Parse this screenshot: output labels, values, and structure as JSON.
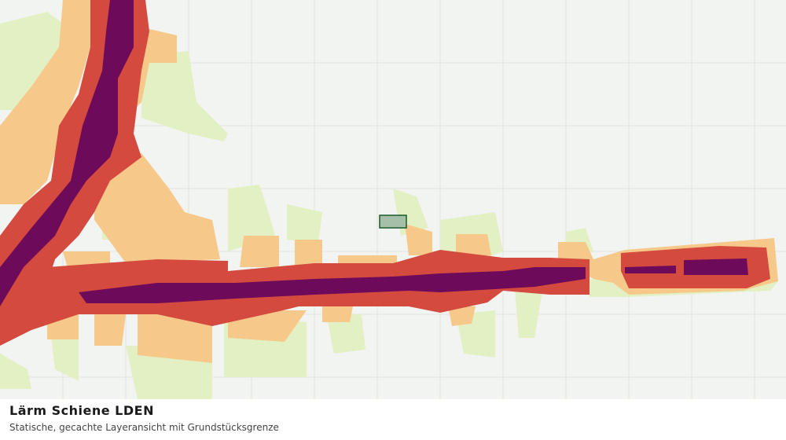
{
  "title": "Lärm Schiene LDEN",
  "subtitle": "Statische, gecachte Layeransicht mit Grundstücksgrenze"
}
